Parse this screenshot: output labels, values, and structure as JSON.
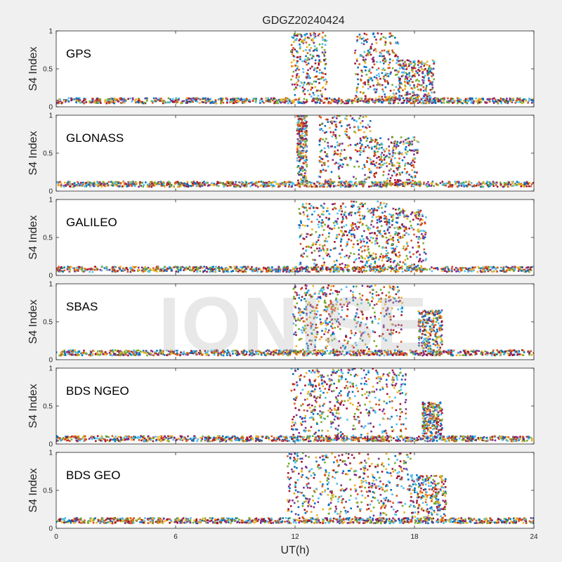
{
  "chart_data": {
    "type": "scatter",
    "title": "GDGZ20240424",
    "xlabel": "UT(h)",
    "ylabel": "S4 Index",
    "xlim": [
      0,
      24
    ],
    "ylim": [
      0,
      1
    ],
    "xticks": [
      "0",
      "6",
      "12",
      "18",
      "24"
    ],
    "yticks": [
      "0",
      "0.5",
      "1"
    ],
    "watermark": "IONISE",
    "series_colors": [
      "#0072BD",
      "#D95319",
      "#EDB120",
      "#7E2F8E",
      "#77AC30",
      "#4DBEEE",
      "#A2142F"
    ],
    "panels": [
      {
        "label": "GPS",
        "baseline": 0.08,
        "active_windows": [
          {
            "start": 11.8,
            "end": 13.6,
            "peak": 0.98
          },
          {
            "start": 15.0,
            "end": 17.2,
            "peak": 0.97
          },
          {
            "start": 17.2,
            "end": 19.0,
            "peak": 0.62
          }
        ]
      },
      {
        "label": "GLONASS",
        "baseline": 0.09,
        "active_windows": [
          {
            "start": 12.1,
            "end": 12.6,
            "peak": 1.0
          },
          {
            "start": 13.2,
            "end": 15.8,
            "peak": 1.0
          },
          {
            "start": 15.8,
            "end": 18.2,
            "peak": 0.72
          }
        ]
      },
      {
        "label": "GALILEO",
        "baseline": 0.08,
        "active_windows": [
          {
            "start": 12.2,
            "end": 14.8,
            "peak": 0.95
          },
          {
            "start": 14.8,
            "end": 16.6,
            "peak": 0.98
          },
          {
            "start": 16.6,
            "end": 18.6,
            "peak": 0.88
          }
        ]
      },
      {
        "label": "SBAS",
        "baseline": 0.09,
        "active_windows": [
          {
            "start": 11.9,
            "end": 14.0,
            "peak": 0.98
          },
          {
            "start": 14.0,
            "end": 17.4,
            "peak": 0.98
          },
          {
            "start": 18.2,
            "end": 19.4,
            "peak": 0.65
          }
        ]
      },
      {
        "label": "BDS NGEO",
        "baseline": 0.07,
        "active_windows": [
          {
            "start": 11.8,
            "end": 14.2,
            "peak": 1.0
          },
          {
            "start": 14.2,
            "end": 17.6,
            "peak": 1.0
          },
          {
            "start": 18.4,
            "end": 19.4,
            "peak": 0.55
          }
        ]
      },
      {
        "label": "BDS GEO",
        "baseline": 0.1,
        "active_windows": [
          {
            "start": 11.6,
            "end": 14.6,
            "peak": 1.0
          },
          {
            "start": 14.6,
            "end": 17.8,
            "peak": 1.0
          },
          {
            "start": 17.8,
            "end": 19.6,
            "peak": 0.7
          }
        ]
      }
    ]
  }
}
